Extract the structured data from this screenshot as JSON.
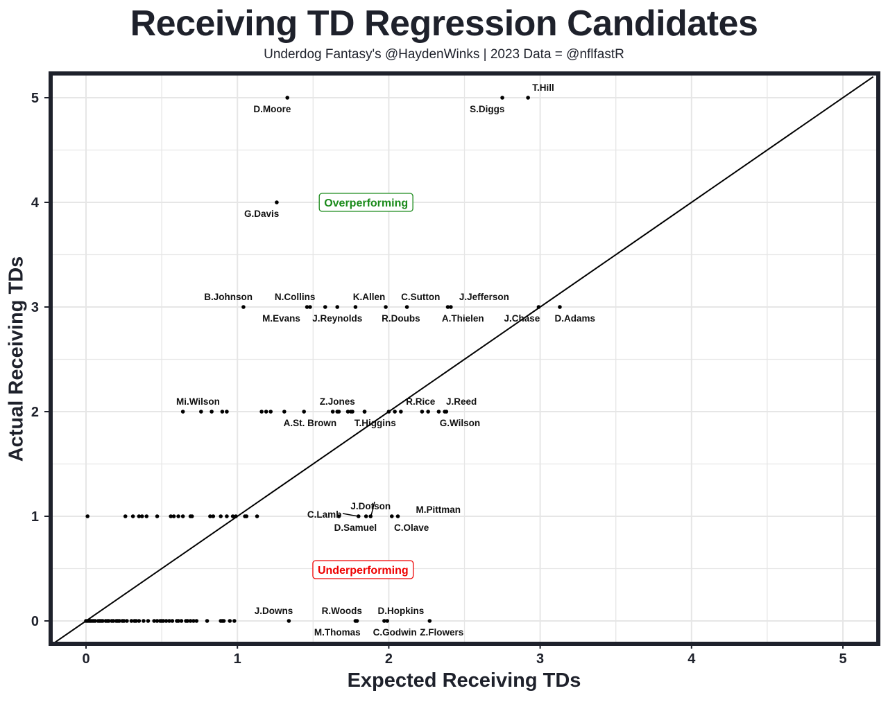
{
  "chart_data": {
    "type": "scatter",
    "title": "Receiving TD Regression Candidates",
    "subtitle": "Underdog Fantasy's @HaydenWinks | 2023 Data = @nflfastR",
    "xlabel": "Expected Receiving TDs",
    "ylabel": "Actual Receiving TDs",
    "xlim": [
      -0.22,
      5.24
    ],
    "ylim": [
      -0.23,
      5.2
    ],
    "xticks": [
      "0",
      "1",
      "2",
      "3",
      "4",
      "5"
    ],
    "yticks": [
      "0",
      "1",
      "2",
      "3",
      "4",
      "5"
    ],
    "grid": true,
    "reference_line": "y = x",
    "colors": {
      "frame": "#1e212b",
      "grid": "#e6e6e6",
      "points": "#000000",
      "over": "#1a8a1a",
      "under": "#ee0000"
    },
    "annotations": [
      {
        "text": "Overperforming",
        "x": 1.85,
        "y": 4.0,
        "color": "#1a8a1a"
      },
      {
        "text": "Underperforming",
        "x": 1.83,
        "y": 0.49,
        "color": "#ee0000"
      }
    ],
    "labeled_points": [
      {
        "name": "D.Moore",
        "x": 1.33,
        "y": 5,
        "pos": "below",
        "dx": -0.1
      },
      {
        "name": "T.Hill",
        "x": 2.92,
        "y": 5,
        "pos": "above",
        "dx": 0.1
      },
      {
        "name": "S.Diggs",
        "x": 2.75,
        "y": 5,
        "pos": "below",
        "dx": -0.1
      },
      {
        "name": "G.Davis",
        "x": 1.26,
        "y": 4,
        "pos": "below",
        "dx": -0.1
      },
      {
        "name": "B.Johnson",
        "x": 1.04,
        "y": 3,
        "pos": "above",
        "dx": -0.1
      },
      {
        "name": "M.Evans",
        "x": 1.46,
        "y": 3,
        "pos": "below",
        "dx": -0.17
      },
      {
        "name": "N.Collins",
        "x": 1.48,
        "y": 3,
        "pos": "above",
        "dx": -0.1
      },
      {
        "name": "J.Reynolds",
        "x": 1.66,
        "y": 3,
        "pos": "below",
        "dx": 0.0
      },
      {
        "name": "K.Allen",
        "x": 1.78,
        "y": 3,
        "pos": "above",
        "dx": 0.09
      },
      {
        "name": "R.Doubs",
        "x": 1.98,
        "y": 3,
        "pos": "below",
        "dx": 0.1
      },
      {
        "name": "C.Sutton",
        "x": 2.12,
        "y": 3,
        "pos": "above",
        "dx": 0.09
      },
      {
        "name": "A.Thielen",
        "x": 2.39,
        "y": 3,
        "pos": "below",
        "dx": 0.1
      },
      {
        "name": "J.Jefferson",
        "x": 2.41,
        "y": 3,
        "pos": "above",
        "dx": 0.22
      },
      {
        "name": "J.Chase",
        "x": 2.99,
        "y": 3,
        "pos": "below",
        "dx": -0.11
      },
      {
        "name": "D.Adams",
        "x": 3.13,
        "y": 3,
        "pos": "below",
        "dx": 0.1
      },
      {
        "name": "Mi.Wilson",
        "x": 0.64,
        "y": 2,
        "pos": "above",
        "dx": 0.1
      },
      {
        "name": "A.St. Brown",
        "x": 1.44,
        "y": 2,
        "pos": "below",
        "dx": 0.04
      },
      {
        "name": "Z.Jones",
        "x": 1.66,
        "y": 2,
        "pos": "above",
        "dx": 0.0
      },
      {
        "name": "T.Higgins",
        "x": 1.84,
        "y": 2,
        "pos": "below",
        "dx": 0.07
      },
      {
        "name": "R.Rice",
        "x": 2.04,
        "y": 2,
        "pos": "above",
        "dx": 0.17
      },
      {
        "name": "G.Wilson",
        "x": 2.37,
        "y": 2,
        "pos": "below",
        "dx": 0.1
      },
      {
        "name": "J.Reed",
        "x": 2.38,
        "y": 2,
        "pos": "above",
        "dx": 0.1
      },
      {
        "name": "C.Lamb",
        "x": 1.67,
        "y": 1,
        "pos": "left",
        "dx": -0.12
      },
      {
        "name": "D.Samuel",
        "x": 1.8,
        "y": 1,
        "pos": "below",
        "dx": -0.02
      },
      {
        "name": "J.Dotson",
        "x": 1.88,
        "y": 1,
        "pos": "above",
        "dx": 0.0
      },
      {
        "name": "C.Olave",
        "x": 2.02,
        "y": 1,
        "pos": "below",
        "dx": 0.13
      },
      {
        "name": "M.Pittman",
        "x": 2.06,
        "y": 1,
        "pos": "right",
        "dx": 0.23
      },
      {
        "name": "J.Downs",
        "x": 1.34,
        "y": 0,
        "pos": "above",
        "dx": -0.1
      },
      {
        "name": "M.Thomas",
        "x": 1.78,
        "y": 0,
        "pos": "below",
        "dx": -0.12
      },
      {
        "name": "R.Woods",
        "x": 1.79,
        "y": 0,
        "pos": "above",
        "dx": -0.1
      },
      {
        "name": "C.Godwin",
        "x": 1.97,
        "y": 0,
        "pos": "below",
        "dx": 0.07
      },
      {
        "name": "D.Hopkins",
        "x": 1.99,
        "y": 0,
        "pos": "above",
        "dx": 0.09
      },
      {
        "name": "Z.Flowers",
        "x": 2.27,
        "y": 0,
        "pos": "below",
        "dx": 0.08
      }
    ],
    "unlabeled_points": [
      {
        "y": 3,
        "x": [
          1.58
        ]
      },
      {
        "y": 2,
        "x": [
          0.76,
          0.83,
          0.9,
          0.93,
          1.16,
          1.19,
          1.22,
          1.31,
          1.63,
          1.67,
          1.73,
          1.75,
          1.76,
          1.84,
          2.0,
          2.08,
          2.22,
          2.26,
          2.33
        ]
      },
      {
        "y": 1,
        "x": [
          0.01,
          0.26,
          0.31,
          0.35,
          0.37,
          0.4,
          0.47,
          0.56,
          0.58,
          0.61,
          0.64,
          0.69,
          0.7,
          0.82,
          0.84,
          0.89,
          0.93,
          0.97,
          0.99,
          1.05,
          1.06,
          1.13,
          1.85
        ]
      },
      {
        "y": 0,
        "x": [
          0.0,
          0.01,
          0.02,
          0.03,
          0.04,
          0.05,
          0.06,
          0.08,
          0.09,
          0.1,
          0.11,
          0.13,
          0.14,
          0.15,
          0.17,
          0.18,
          0.2,
          0.21,
          0.22,
          0.24,
          0.25,
          0.27,
          0.3,
          0.32,
          0.33,
          0.35,
          0.38,
          0.41,
          0.45,
          0.47,
          0.49,
          0.5,
          0.51,
          0.53,
          0.55,
          0.57,
          0.6,
          0.61,
          0.63,
          0.66,
          0.67,
          0.69,
          0.71,
          0.73,
          0.8,
          0.89,
          0.9,
          0.91,
          0.95,
          0.98
        ]
      }
    ]
  }
}
